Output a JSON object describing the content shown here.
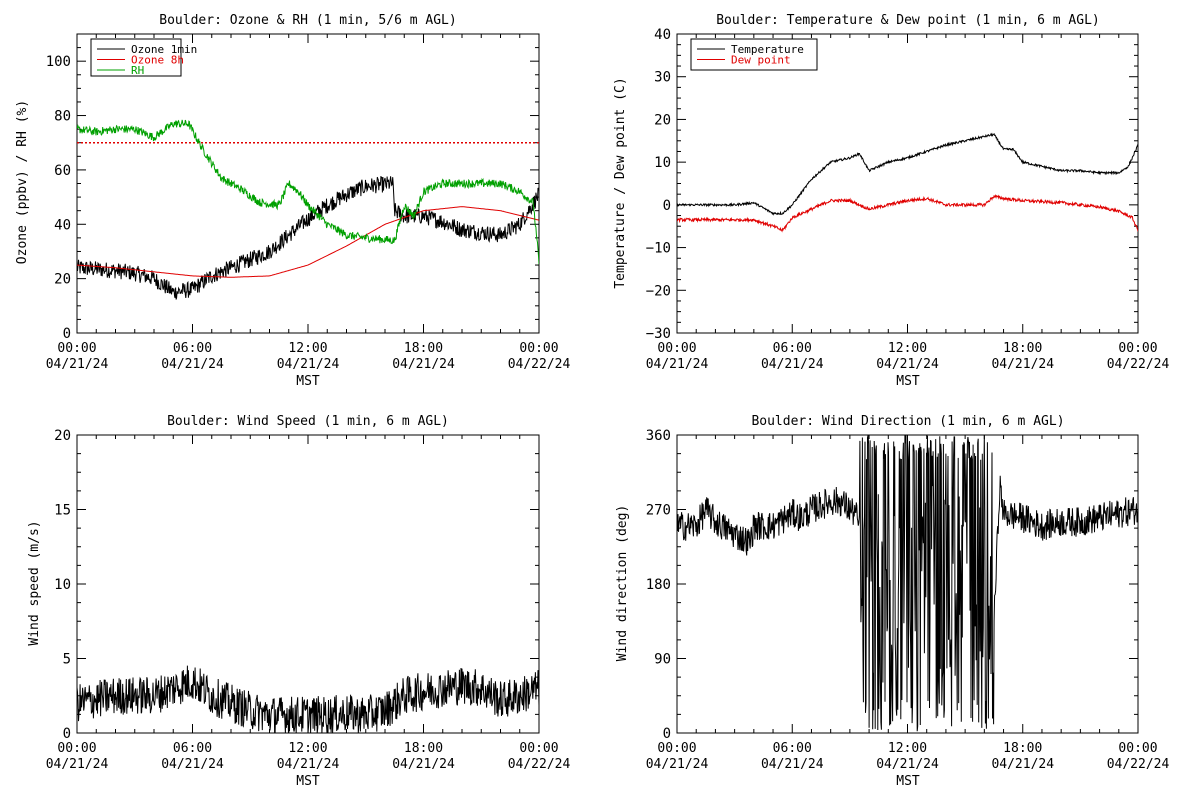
{
  "chart_data": [
    {
      "type": "line",
      "title": "Boulder: Ozone & RH (1 min, 5/6 m AGL)",
      "xlabel": "MST",
      "ylabel": "Ozone (ppbv) / RH (%)",
      "xlim": [
        0,
        24
      ],
      "ylim": [
        0,
        110
      ],
      "xticks": [
        0,
        6,
        12,
        18,
        24
      ],
      "xtick_labels": [
        [
          "00:00",
          "04/21/24"
        ],
        [
          "06:00",
          "04/21/24"
        ],
        [
          "12:00",
          "04/21/24"
        ],
        [
          "18:00",
          "04/21/24"
        ],
        [
          "00:00",
          "04/22/24"
        ]
      ],
      "yticks": [
        0,
        20,
        40,
        60,
        80,
        100
      ],
      "ytick_labels": [
        "0",
        "20",
        "40",
        "60",
        "80",
        "100"
      ],
      "legend_position": "top-left",
      "reference_line": {
        "y": 70,
        "color": "#e00000",
        "style": "dotted"
      },
      "series": [
        {
          "name": "Ozone 1min",
          "color": "#000000",
          "noise": 3,
          "x": [
            0,
            2,
            3,
            4,
            5,
            6,
            7,
            8,
            9,
            10,
            11,
            12,
            13,
            14,
            15,
            16.4,
            16.5,
            17,
            18,
            19,
            20,
            21,
            22,
            23,
            24
          ],
          "y": [
            24,
            23,
            22,
            20,
            15,
            16,
            21,
            24,
            27,
            30,
            36,
            42,
            47,
            51,
            54,
            55,
            45,
            43,
            43,
            41,
            38,
            37,
            36,
            40,
            51
          ]
        },
        {
          "name": "Ozone 8h",
          "color": "#e00000",
          "noise": 0,
          "x": [
            0,
            2,
            4,
            6,
            8,
            10,
            12,
            14,
            16,
            18,
            20,
            22,
            24
          ],
          "y": [
            25,
            24,
            22.5,
            21,
            20.5,
            21,
            25,
            32,
            40,
            45,
            46.5,
            45,
            41.5
          ]
        },
        {
          "name": "RH",
          "color": "#00a000",
          "noise": 1.5,
          "x": [
            0,
            1,
            2,
            3,
            4,
            5,
            5.8,
            6.5,
            7.5,
            8.5,
            9.5,
            10.5,
            11,
            11.5,
            12,
            13,
            14,
            15,
            16.5,
            17,
            17.5,
            18,
            19,
            20,
            21,
            22,
            23,
            23.7,
            24
          ],
          "y": [
            75,
            74,
            75,
            75,
            72,
            77,
            77,
            68,
            57,
            53,
            48,
            47,
            55,
            52,
            47,
            40,
            36,
            35,
            34,
            47,
            43,
            52,
            55,
            55,
            55,
            55,
            52,
            48,
            26
          ]
        }
      ]
    },
    {
      "type": "line",
      "title": "Boulder: Temperature & Dew point (1 min, 6 m AGL)",
      "xlabel": "MST",
      "ylabel": "Temperature / Dew point (C)",
      "xlim": [
        0,
        24
      ],
      "ylim": [
        -30,
        40
      ],
      "xticks": [
        0,
        6,
        12,
        18,
        24
      ],
      "xtick_labels": [
        [
          "00:00",
          "04/21/24"
        ],
        [
          "06:00",
          "04/21/24"
        ],
        [
          "12:00",
          "04/21/24"
        ],
        [
          "18:00",
          "04/21/24"
        ],
        [
          "00:00",
          "04/22/24"
        ]
      ],
      "yticks": [
        -30,
        -20,
        -10,
        0,
        10,
        20,
        30,
        40
      ],
      "ytick_labels": [
        "−30",
        "−20",
        "−10",
        "0",
        "10",
        "20",
        "30",
        "40"
      ],
      "legend_position": "top-left",
      "series": [
        {
          "name": "Temperature",
          "color": "#000000",
          "noise": 0.25,
          "x": [
            0,
            2,
            3,
            4,
            5,
            5.5,
            6,
            7,
            8,
            9,
            9.5,
            10,
            11,
            12,
            13,
            14,
            15,
            16,
            16.5,
            17,
            17.5,
            18,
            19,
            20,
            21,
            22,
            23,
            23.5,
            24
          ],
          "y": [
            0,
            0,
            0,
            0.5,
            -2,
            -2,
            0,
            6,
            10,
            11,
            12,
            8,
            10,
            11,
            12.5,
            14,
            15,
            16,
            16.5,
            13,
            13,
            10,
            9,
            8,
            8,
            7.5,
            7.5,
            9,
            14
          ]
        },
        {
          "name": "Dew point",
          "color": "#e00000",
          "noise": 0.35,
          "x": [
            0,
            2,
            4,
            5,
            5.5,
            6,
            7,
            8,
            9,
            10,
            11,
            12,
            13,
            14,
            15,
            16,
            16.5,
            17,
            18,
            20,
            22,
            23,
            23.7,
            24
          ],
          "y": [
            -3.5,
            -3.5,
            -3.5,
            -5,
            -6,
            -3,
            -1,
            1,
            1,
            -1,
            0,
            1,
            1.5,
            0,
            0,
            0,
            2,
            1.5,
            1,
            0.5,
            -0.5,
            -1.5,
            -3,
            -6
          ]
        }
      ]
    },
    {
      "type": "line",
      "title": "Boulder: Wind Speed (1 min, 6 m AGL)",
      "xlabel": "",
      "ylabel": "Wind speed (m/s)",
      "xlim": [
        0,
        24
      ],
      "ylim": [
        0,
        20
      ],
      "xticks": [
        0,
        6,
        12,
        18,
        24
      ],
      "xtick_labels": [
        [
          "00:00",
          "04/21/24"
        ],
        [
          "06:00",
          "04/21/24"
        ],
        [
          "12:00",
          "04/21/24"
        ],
        [
          "18:00",
          "04/21/24"
        ],
        [
          "00:00",
          "04/22/24"
        ]
      ],
      "yticks": [
        0,
        5,
        10,
        15,
        20
      ],
      "ytick_labels": [
        "0",
        "5",
        "10",
        "15",
        "20"
      ],
      "series": [
        {
          "name": "",
          "color": "#000000",
          "noise": 1.3,
          "x": [
            0,
            2,
            4,
            5,
            6,
            7,
            8,
            9,
            10,
            11,
            12,
            13,
            14,
            15,
            16,
            17,
            18,
            19,
            20,
            21,
            22,
            23,
            24
          ],
          "y": [
            2,
            2.5,
            2.5,
            3,
            3.5,
            2.5,
            2,
            1.5,
            1.2,
            1.2,
            1.2,
            1.2,
            1.3,
            1.2,
            1.5,
            2.5,
            2.8,
            3,
            3.2,
            3,
            2.2,
            2.5,
            3
          ]
        }
      ]
    },
    {
      "type": "line",
      "title": "Boulder: Wind Direction (1 min, 6 m AGL)",
      "xlabel": "MST",
      "ylabel": "Wind direction (deg)",
      "xlim": [
        0,
        24
      ],
      "ylim": [
        0,
        360
      ],
      "xticks": [
        0,
        6,
        12,
        18,
        24
      ],
      "xtick_labels": [
        [
          "00:00",
          "04/21/24"
        ],
        [
          "06:00",
          "04/21/24"
        ],
        [
          "12:00",
          "04/21/24"
        ],
        [
          "18:00",
          "04/21/24"
        ],
        [
          "00:00",
          "04/22/24"
        ]
      ],
      "yticks": [
        0,
        90,
        180,
        270,
        360
      ],
      "ytick_labels": [
        "0",
        "90",
        "180",
        "270",
        "360"
      ],
      "series": [
        {
          "name": "",
          "color": "#000000",
          "noise": 18,
          "x": [
            0,
            1,
            1.5,
            2,
            3,
            3.8,
            4,
            5,
            6,
            6.5,
            7,
            8,
            8.5,
            9,
            9.3,
            10,
            11,
            12,
            13,
            14,
            15,
            16,
            16.5,
            16.8,
            17,
            18,
            19,
            20,
            21,
            22,
            23,
            24
          ],
          "y": [
            250,
            250,
            270,
            255,
            240,
            230,
            250,
            250,
            265,
            260,
            270,
            280,
            280,
            270,
            265,
            200,
            190,
            170,
            150,
            140,
            150,
            160,
            130,
            300,
            265,
            260,
            250,
            255,
            255,
            260,
            265,
            270
          ],
          "chaotic_between": [
            9.5,
            16.5
          ]
        }
      ]
    }
  ]
}
